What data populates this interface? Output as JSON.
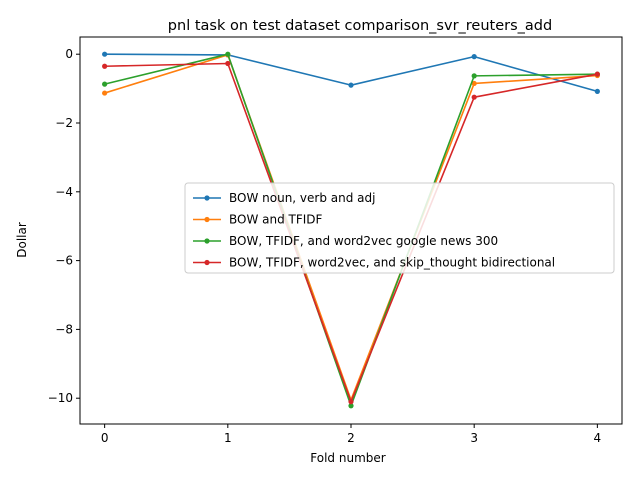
{
  "chart_data": {
    "type": "line",
    "title": "pnl task on test dataset comparison_svr_reuters_add",
    "xlabel": "Fold number",
    "ylabel": "Dollar",
    "x": [
      0,
      1,
      2,
      3,
      4
    ],
    "xlim": [
      -0.2,
      4.2
    ],
    "ylim": [
      -10.75,
      0.5
    ],
    "xticks": [
      0,
      1,
      2,
      3,
      4
    ],
    "yticks": [
      0,
      -2,
      -4,
      -6,
      -8,
      -10
    ],
    "ytick_labels": [
      "0",
      "−2",
      "−4",
      "−6",
      "−8",
      "−10"
    ],
    "legend_position": "center-right",
    "grid": false,
    "series": [
      {
        "name": "BOW noun, verb and adj",
        "color": "#1f77b4",
        "values": [
          0.0,
          -0.02,
          -0.9,
          -0.07,
          -1.08
        ]
      },
      {
        "name": "BOW and TFIDF",
        "color": "#ff7f0e",
        "values": [
          -1.13,
          -0.02,
          -10.05,
          -0.85,
          -0.62
        ]
      },
      {
        "name": "BOW, TFIDF, and word2vec google news 300",
        "color": "#2ca02c",
        "values": [
          -0.87,
          0.0,
          -10.22,
          -0.63,
          -0.58
        ]
      },
      {
        "name": "BOW, TFIDF, word2vec, and skip_thought bidirectional",
        "color": "#d62728",
        "values": [
          -0.35,
          -0.27,
          -10.1,
          -1.25,
          -0.58
        ]
      }
    ]
  }
}
